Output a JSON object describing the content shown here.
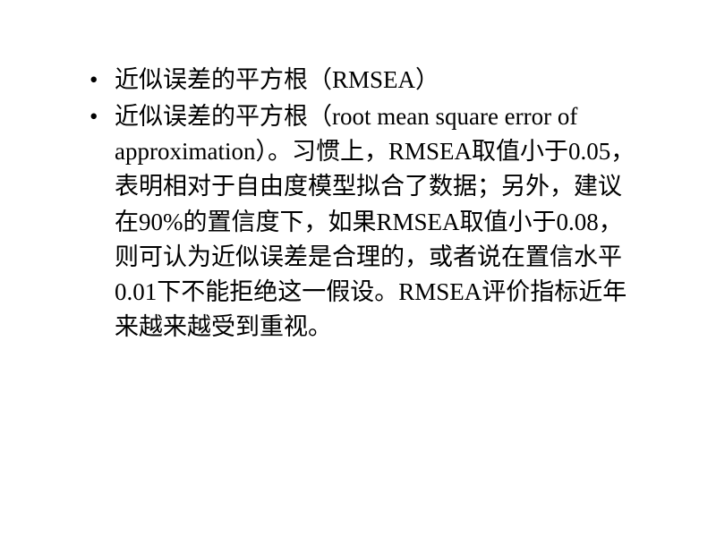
{
  "slide": {
    "bullets": [
      {
        "text": "近似误差的平方根（RMSEA）"
      },
      {
        "text": "近似误差的平方根（root mean square error of approximation）。习惯上，RMSEA取值小于0.05，表明相对于自由度模型拟合了数据；另外，建议在90%的置信度下，如果RMSEA取值小于0.08，则可认为近似误差是合理的，或者说在置信水平0.01下不能拒绝这一假设。RMSEA评价指标近年来越来越受到重视。"
      }
    ],
    "text_color": "#000000",
    "background_color": "#ffffff",
    "font_size": 27,
    "line_height": 1.45
  }
}
